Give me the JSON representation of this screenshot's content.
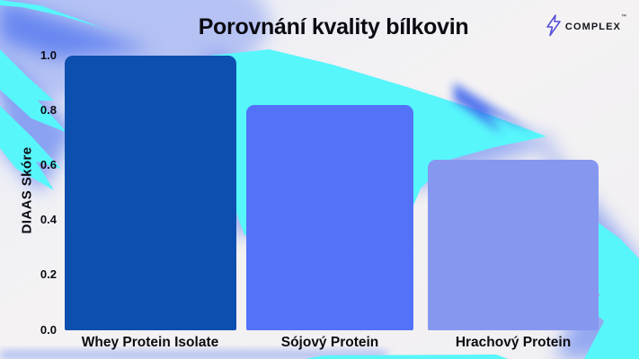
{
  "header": {
    "title": "Porovnání kvality bílkovin"
  },
  "brand": {
    "name": "COMPLEX",
    "trademark": "™",
    "icon": "lightning-bolt-icon",
    "icon_color": "#5a50d8",
    "text_color": "#15151c"
  },
  "chart_data": {
    "type": "bar",
    "title": "Porovnání kvality bílkovin",
    "categories": [
      "Whey Protein Isolate",
      "Sójový Protein",
      "Hrachový Protein"
    ],
    "values": [
      1.0,
      0.82,
      0.62
    ],
    "bar_colors": [
      "#0d4fae",
      "#5472f8",
      "#8697f0"
    ],
    "xlabel": "",
    "ylabel": "DIAAS Skóre",
    "ylim": [
      0.0,
      1.0
    ],
    "yticks": [
      0.0,
      0.2,
      0.4,
      0.6,
      0.8,
      1.0
    ],
    "ytick_labels": [
      "0.0",
      "0.2",
      "0.4",
      "0.6",
      "0.8",
      "1.0"
    ],
    "grid": false,
    "legend": false
  },
  "background": {
    "base": "#f2f1f3",
    "accent_cyan": "#57f6fb",
    "accent_blue": "#4a6ff0"
  }
}
